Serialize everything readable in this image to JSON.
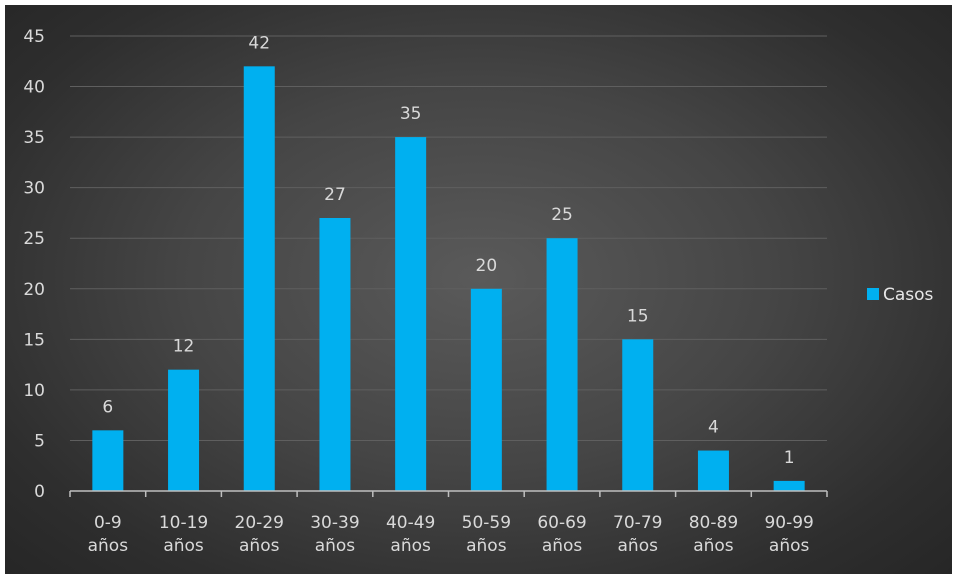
{
  "chart_data": {
    "type": "bar",
    "categories": [
      [
        "0-9",
        "años"
      ],
      [
        "10-19",
        "años"
      ],
      [
        "20-29",
        "años"
      ],
      [
        "30-39",
        "años"
      ],
      [
        "40-49",
        "años"
      ],
      [
        "50-59",
        "años"
      ],
      [
        "60-69",
        "años"
      ],
      [
        "70-79",
        "años"
      ],
      [
        "80-89",
        "años"
      ],
      [
        "90-99",
        "años"
      ]
    ],
    "series": [
      {
        "name": "Casos",
        "values": [
          6,
          12,
          42,
          27,
          35,
          20,
          25,
          15,
          4,
          1
        ]
      }
    ],
    "y_ticks": [
      0,
      5,
      10,
      15,
      20,
      25,
      30,
      35,
      40,
      45
    ],
    "ylim": [
      0,
      45
    ],
    "data_labels": true,
    "grid": true,
    "legend_position": "right",
    "colors": {
      "bar": "#00b0f0",
      "grid": "#5f5f5f",
      "axis": "#bfbfbf",
      "text": "#d9d9d9"
    }
  }
}
